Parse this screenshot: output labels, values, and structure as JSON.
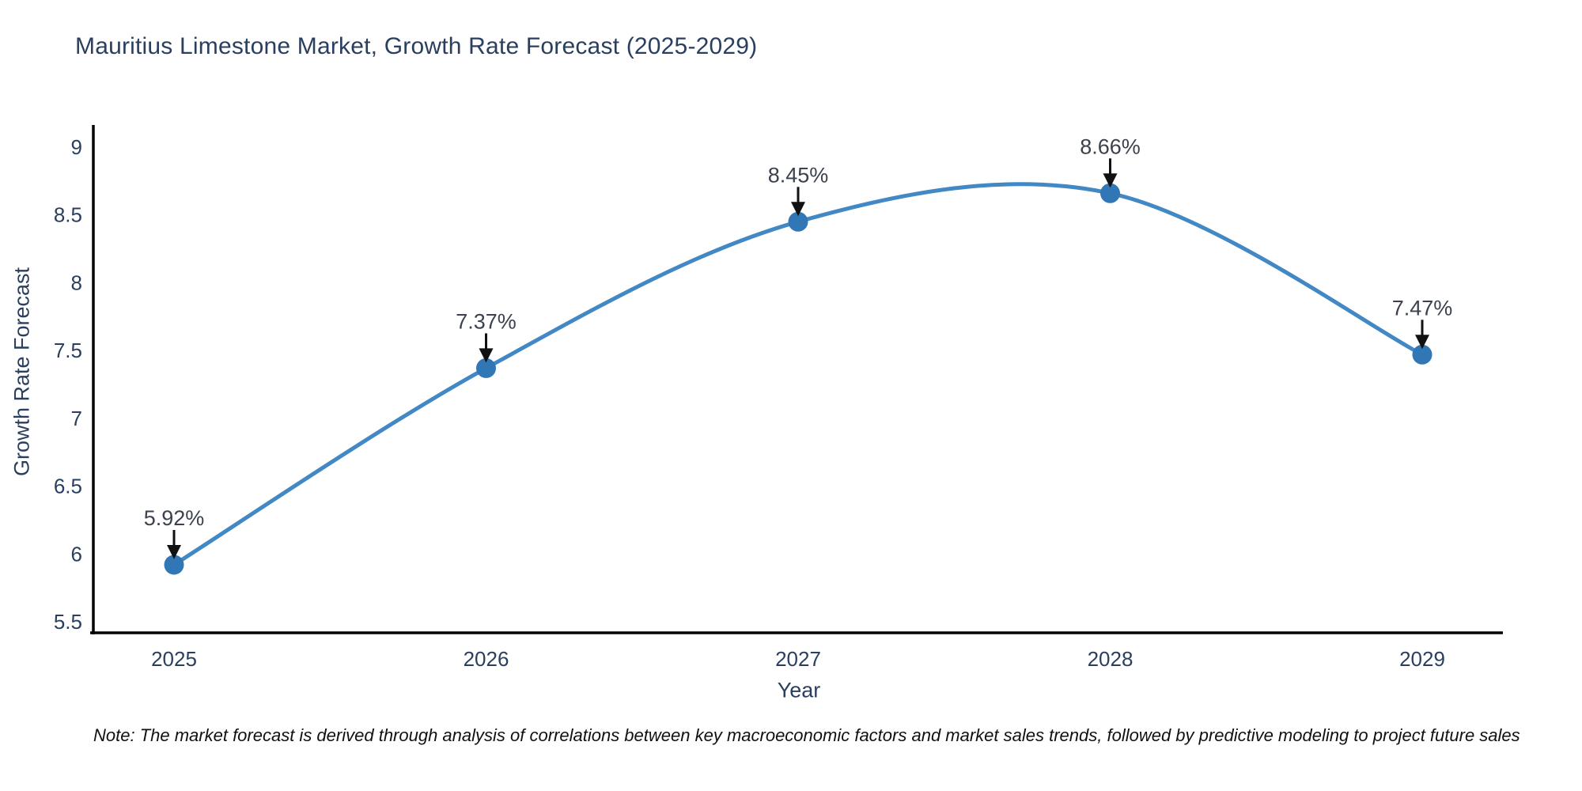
{
  "page": {
    "background": "#ffffff"
  },
  "title": {
    "text": "Mauritius Limestone Market, Growth Rate Forecast (2025-2029)",
    "color": "#2a3f5f"
  },
  "note": {
    "text": "Note: The market forecast is derived through analysis of correlations between key macroeconomic factors and market sales trends, followed by predictive modeling to project future sales"
  },
  "chart_data": {
    "type": "line",
    "line_shape": "spline",
    "title": "Mauritius Limestone Market, Growth Rate Forecast (2025-2029)",
    "categories": [
      "2025",
      "2026",
      "2027",
      "2028",
      "2029"
    ],
    "values": [
      5.92,
      7.37,
      8.45,
      8.66,
      7.47
    ],
    "point_labels": [
      "5.92%",
      "7.37%",
      "8.45%",
      "8.66%",
      "7.47%"
    ],
    "xlabel": "Year",
    "ylabel": "Growth Rate Forecast",
    "yticks": [
      5.5,
      6,
      6.5,
      7,
      7.5,
      8,
      8.5,
      9
    ],
    "ytick_labels": [
      "5.5",
      "6",
      "6.5",
      "7",
      "7.5",
      "8",
      "8.5",
      "9"
    ],
    "ylim": [
      5.5,
      9
    ],
    "grid": false,
    "legend": "none",
    "markers": true,
    "colors": {
      "line": "#4288c5",
      "marker": "#3277b5",
      "axis": "#000000",
      "tick_text": "#2a3f5f",
      "axis_title_text": "#2a3f5f",
      "annotation_text": "#3b414d",
      "arrow": "#111111"
    }
  }
}
